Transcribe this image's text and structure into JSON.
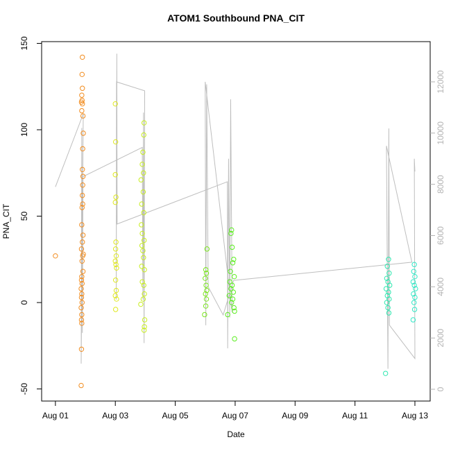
{
  "chart_data": {
    "type": "scatter",
    "title": "ATOM1 Southbound PNA_CIT",
    "x_label": "Date",
    "y_label": "PNA_CIT",
    "xlim": [
      0.54,
      13.51
    ],
    "ylim": [
      -57,
      151
    ],
    "y2lim": [
      -460,
      13570
    ],
    "xticks": [
      {
        "value": 1,
        "label": "Aug 01"
      },
      {
        "value": 3,
        "label": "Aug 03"
      },
      {
        "value": 5,
        "label": "Aug 05"
      },
      {
        "value": 7,
        "label": "Aug 07"
      },
      {
        "value": 9,
        "label": "Aug 09"
      },
      {
        "value": 11,
        "label": "Aug 11"
      },
      {
        "value": 13,
        "label": "Aug 13"
      }
    ],
    "yticks": [
      -50,
      0,
      50,
      100,
      150
    ],
    "y2ticks": [
      0,
      2000,
      4000,
      6000,
      8000,
      10000,
      12000
    ],
    "axis_color": "#b3b3b3",
    "series": [
      {
        "type": "line",
        "axis": "y2",
        "color": "#bebebe",
        "x": [
          1.0,
          1.93,
          1.86,
          1.88,
          1.9,
          1.92,
          3.9,
          3.92,
          3.94,
          3.96,
          3.98,
          3.04,
          3.03,
          3.05,
          3.06,
          6.74,
          6.75,
          6.78,
          6.82,
          6.85,
          6.9,
          6.0,
          6.02,
          6.05,
          6.1,
          6.6,
          6.95,
          12.9,
          12.05,
          12.1,
          12.13,
          12.15,
          13.0,
          12.98,
          13.0
        ],
        "values": [
          7900,
          10750,
          1000,
          10200,
          2200,
          8300,
          9440,
          3500,
          10800,
          1800,
          11650,
          12000,
          3500,
          13100,
          6450,
          8100,
          1600,
          9000,
          2800,
          11320,
          3000,
          12000,
          2500,
          11900,
          4000,
          2900,
          4250,
          4960,
          9500,
          800,
          10180,
          2500,
          1200,
          9000,
          8500
        ]
      },
      {
        "type": "scatter",
        "color": "#f28c1e",
        "x": [
          1.0,
          1.9,
          1.89,
          1.9,
          1.88,
          1.89,
          1.87,
          1.9,
          1.88,
          1.92,
          1.93,
          1.91,
          1.9,
          1.92,
          1.91,
          1.9,
          1.91,
          1.89,
          1.88,
          1.92,
          1.9,
          1.87,
          1.93,
          1.91,
          1.89,
          1.92,
          1.88,
          1.87,
          1.89,
          1.86,
          1.88,
          1.87,
          1.89,
          1.86,
          1.88,
          1.87,
          1.88,
          1.87,
          1.86
        ],
        "values": [
          27,
          142,
          132,
          124,
          120,
          117,
          116,
          115,
          111,
          108,
          98,
          89,
          77,
          73,
          68,
          62,
          57,
          55,
          45,
          39,
          35,
          31,
          28,
          27,
          24,
          18,
          15,
          13,
          11,
          8,
          5,
          3,
          0,
          -3,
          -7,
          -10,
          -12,
          -27,
          -48
        ]
      },
      {
        "type": "scatter",
        "color": "#dfe81e",
        "x": [
          3.0,
          3.01,
          3.0,
          3.02,
          3.0,
          3.02,
          3.01,
          3.03,
          3.0,
          3.02,
          3.04,
          3.01,
          3.03,
          3.0,
          3.04,
          3.01
        ],
        "values": [
          115,
          93,
          74,
          61,
          58,
          35,
          31,
          27,
          24,
          22,
          20,
          13,
          7,
          4,
          2,
          -4
        ]
      },
      {
        "type": "scatter",
        "color": "#c8ee1e",
        "x": [
          3.96,
          3.95,
          3.92,
          3.9,
          3.94,
          3.86,
          3.93,
          3.88,
          3.95,
          3.87,
          3.9,
          3.96,
          3.89,
          3.92,
          3.94,
          3.88,
          3.97,
          3.9,
          3.95,
          3.97,
          3.93,
          3.85,
          3.98,
          3.97,
          3.96
        ],
        "values": [
          104,
          97,
          87,
          80,
          75,
          71,
          64,
          57,
          52,
          45,
          40,
          36,
          33,
          30,
          26,
          21,
          19,
          12,
          10,
          5,
          2,
          -1,
          -10,
          -14,
          -16
        ]
      },
      {
        "type": "scatter",
        "color": "#7ae61e",
        "x": [
          6.06,
          6.02,
          6.04,
          6.0,
          6.03,
          6.05,
          6.01,
          6.04,
          6.02,
          5.98
        ],
        "values": [
          31,
          19,
          17,
          14,
          10,
          7,
          5,
          2,
          -2,
          -7
        ]
      },
      {
        "type": "scatter",
        "color": "#5aee1e",
        "x": [
          6.88,
          6.86,
          6.9,
          6.95,
          6.92,
          6.84,
          6.97,
          6.82,
          6.9,
          6.86,
          6.94,
          6.8,
          6.92,
          6.88,
          6.96,
          6.98,
          6.75,
          6.98
        ],
        "values": [
          42,
          40,
          32,
          25,
          23,
          18,
          15,
          12,
          10,
          8,
          6,
          4,
          2,
          0,
          -3,
          -5,
          -7,
          -21
        ]
      },
      {
        "type": "scatter",
        "color": "#2ee8b0",
        "x": [
          12.12,
          12.08,
          12.14,
          12.06,
          12.1,
          12.16,
          12.04,
          12.12,
          12.08,
          12.14,
          12.06,
          12.1,
          12.13,
          12.02
        ],
        "values": [
          25,
          21,
          17,
          14,
          12,
          10,
          8,
          6,
          4,
          2,
          0,
          -3,
          -6,
          -41
        ]
      },
      {
        "type": "scatter",
        "color": "#2ee8c6",
        "x": [
          12.98,
          12.96,
          13.0,
          12.94,
          12.98,
          13.02,
          12.95,
          13.0,
          12.97,
          12.99,
          12.94
        ],
        "values": [
          22,
          18,
          15,
          12,
          10,
          8,
          5,
          3,
          0,
          -4,
          -10
        ]
      }
    ]
  }
}
